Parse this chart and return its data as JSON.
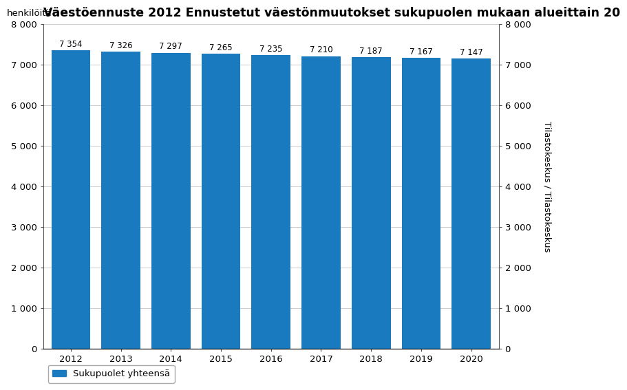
{
  "title": "Väestöennuste 2012 Ennustetut väestönmuutokset sukupuolen mukaan alueittain 20",
  "ylabel_left": "henkilöitä",
  "ylabel_right": "Tilastokeskus / Tilastokeskus",
  "categories": [
    "2012",
    "2013",
    "2014",
    "2015",
    "2016",
    "2017",
    "2018",
    "2019",
    "2020"
  ],
  "values": [
    7354,
    7326,
    7297,
    7265,
    7235,
    7210,
    7187,
    7167,
    7147
  ],
  "bar_color": "#1a7abf",
  "ylim": [
    0,
    8000
  ],
  "yticks": [
    0,
    1000,
    2000,
    3000,
    4000,
    5000,
    6000,
    7000,
    8000
  ],
  "ytick_labels": [
    "0",
    "1 000",
    "2 000",
    "3 000",
    "4 000",
    "5 000",
    "6 000",
    "7 000",
    "8 000"
  ],
  "legend_label": "Sukupuolet yhteensä",
  "background_color": "#ffffff",
  "title_fontsize": 12.5,
  "label_fontsize": 9.5,
  "tick_fontsize": 9.5,
  "value_label_fontsize": 8.5,
  "bar_width": 0.78
}
